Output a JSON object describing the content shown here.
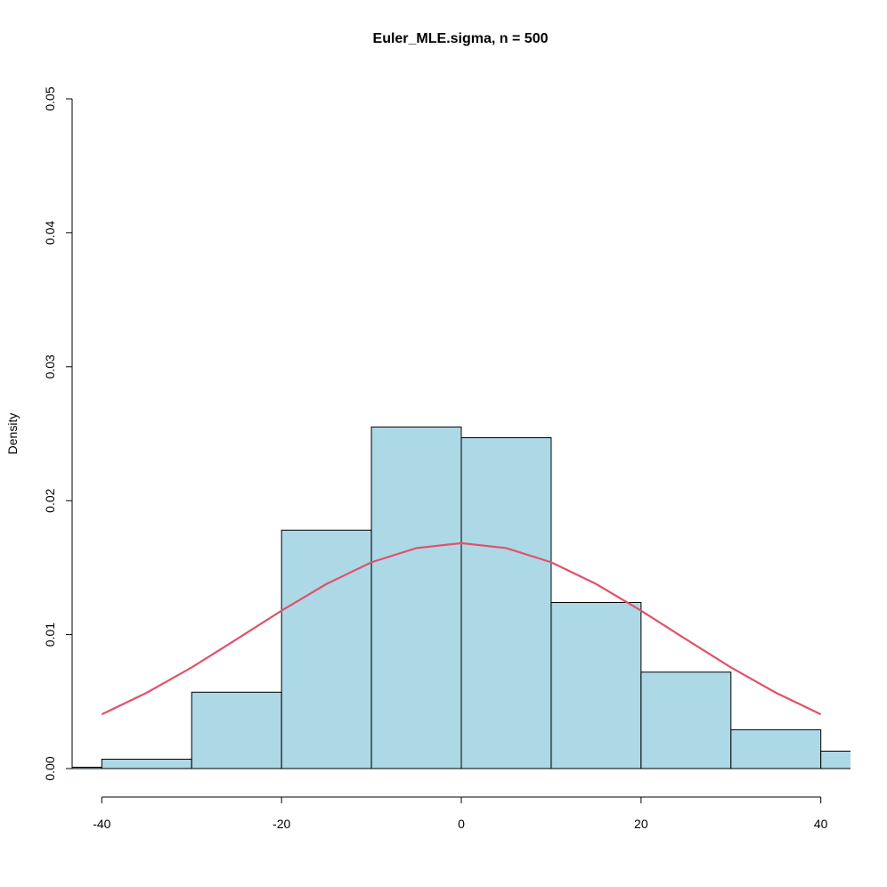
{
  "chart_data": {
    "type": "histogram",
    "title": "Euler_MLE.sigma, n = 500",
    "ylabel": "Density",
    "bins": [
      -50,
      -40,
      -30,
      -20,
      -10,
      0,
      10,
      20,
      30,
      40,
      50
    ],
    "values": [
      0.0001,
      0.0007,
      0.0057,
      0.0178,
      0.0255,
      0.0247,
      0.0124,
      0.0072,
      0.0029,
      0.0013
    ],
    "color": "#add8e6",
    "curve": {
      "color": "#df536b",
      "x": [
        -40,
        -35,
        -30,
        -25,
        -20,
        -15,
        -10,
        -5,
        0,
        5,
        10,
        15,
        20,
        25,
        30,
        35,
        40
      ],
      "y": [
        0.00405,
        0.00566,
        0.00755,
        0.00965,
        0.01179,
        0.01378,
        0.0154,
        0.01646,
        0.01683,
        0.01646,
        0.0154,
        0.01378,
        0.01179,
        0.00965,
        0.00755,
        0.00566,
        0.00405
      ]
    },
    "xlim": [
      -43.3,
      43.3
    ],
    "ylim": [
      0,
      0.05
    ],
    "xticks": [
      -40,
      -20,
      0,
      20,
      40
    ],
    "yticks": [
      {
        "value": 0,
        "label": "0.00"
      },
      0.01,
      0.02,
      0.03,
      0.04,
      0.05
    ]
  }
}
